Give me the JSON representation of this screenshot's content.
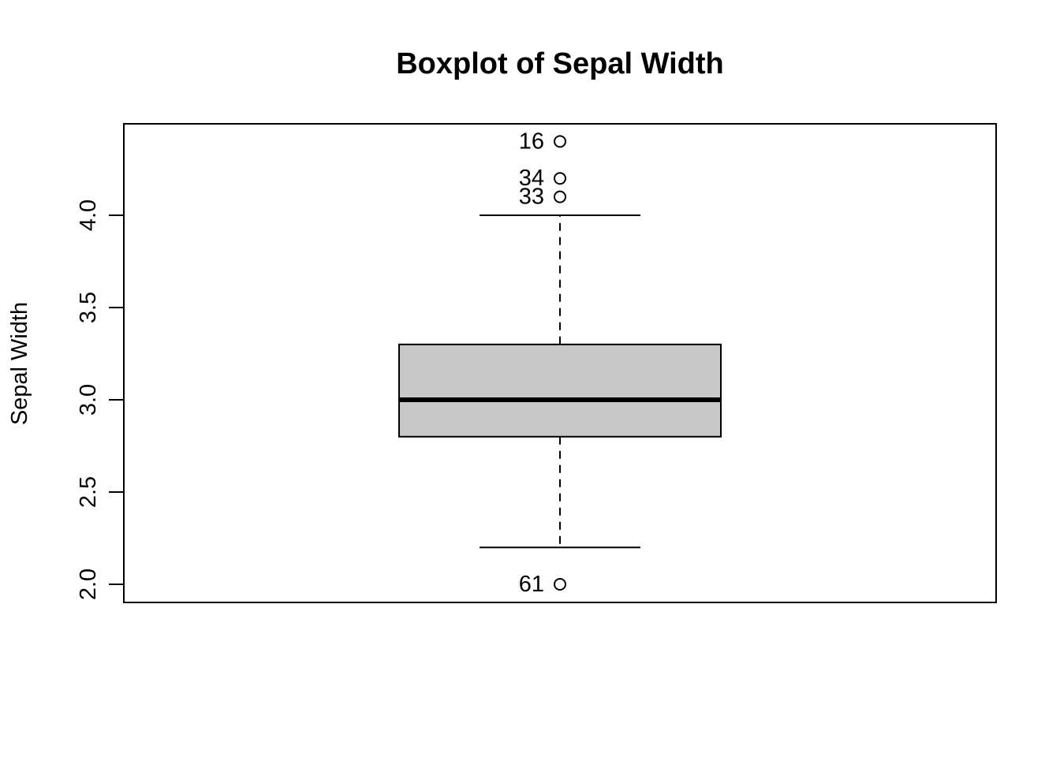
{
  "chart_data": {
    "type": "boxplot",
    "title": "Boxplot of Sepal Width",
    "xlabel": "",
    "ylabel": "Sepal Width",
    "ylim": [
      1.95,
      4.5
    ],
    "yticks": [
      2.0,
      2.5,
      3.0,
      3.5,
      4.0
    ],
    "ytick_labels": [
      "2.0",
      "2.5",
      "3.0",
      "3.5",
      "4.0"
    ],
    "grid": false,
    "legend": "none",
    "box": {
      "whisker_low": 2.2,
      "q1": 2.8,
      "median": 3.0,
      "q3": 3.3,
      "whisker_high": 4.0
    },
    "outliers": [
      {
        "label": "16",
        "value": 4.4
      },
      {
        "label": "34",
        "value": 4.2
      },
      {
        "label": "33",
        "value": 4.1
      },
      {
        "label": "61",
        "value": 2.0
      }
    ],
    "colors": {
      "box_fill": "#c8c8c8",
      "line": "#000000"
    }
  }
}
